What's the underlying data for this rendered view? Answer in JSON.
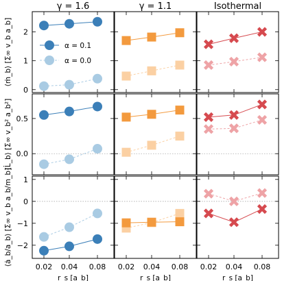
{
  "chart_data": {
    "type": "line",
    "layout": "3x3 grid, shared x and y per row",
    "column_titles": [
      "γ = 1.6",
      "γ = 1.1",
      "Isothermal"
    ],
    "x": [
      0.02,
      0.04,
      0.08
    ],
    "xlabel": "r_s [a_b]",
    "xtick_labels": [
      "0.02",
      "0.04",
      "0.08"
    ],
    "legend": {
      "placement": "upper-left of first panel",
      "entries": [
        {
          "label": "α = 0.1",
          "style": "solid, dark"
        },
        {
          "label": "α = 0.0",
          "style": "dashed, light"
        }
      ]
    },
    "rows": [
      {
        "ylabel": "⟨ṁ_b⟩ [Σ∞ v_b a_b]",
        "ylim": [
          -0.1,
          2.7
        ],
        "yticks": [
          0,
          1,
          2
        ],
        "ytick_labels": [
          "0",
          "1",
          "2"
        ],
        "zero_line": false,
        "panels": [
          {
            "series": [
              {
                "legend": "α = 0.1",
                "values": [
                  2.22,
                  2.28,
                  2.35
                ]
              },
              {
                "legend": "α = 0.0",
                "values": [
                  0.12,
                  0.17,
                  0.38
                ]
              }
            ]
          },
          {
            "series": [
              {
                "legend": "α = 0.1",
                "values": [
                  1.7,
                  1.82,
                  1.97
                ]
              },
              {
                "legend": "α = 0.0",
                "values": [
                  0.47,
                  0.65,
                  0.85
                ]
              }
            ]
          },
          {
            "series": [
              {
                "legend": "α = 0.1",
                "values": [
                  1.57,
                  1.78,
                  2.0
                ]
              },
              {
                "legend": "α = 0.0",
                "values": [
                  0.85,
                  0.97,
                  1.12
                ]
              }
            ]
          }
        ]
      },
      {
        "ylabel": "⟨L̇_b⟩ [Σ∞ v_b² a_b²]",
        "ylim": [
          -0.3,
          0.85
        ],
        "yticks": [
          0,
          0.5
        ],
        "ytick_labels": [
          "0.0",
          "0.5"
        ],
        "zero_line": true,
        "panels": [
          {
            "series": [
              {
                "legend": "α = 0.1",
                "values": [
                  0.55,
                  0.6,
                  0.67
                ]
              },
              {
                "legend": "α = 0.0",
                "values": [
                  -0.15,
                  -0.08,
                  0.07
                ]
              }
            ]
          },
          {
            "series": [
              {
                "legend": "α = 0.1",
                "values": [
                  0.52,
                  0.56,
                  0.62
                ]
              },
              {
                "legend": "α = 0.0",
                "values": [
                  0.02,
                  0.12,
                  0.25
                ]
              }
            ]
          },
          {
            "series": [
              {
                "legend": "α = 0.1",
                "values": [
                  0.52,
                  0.55,
                  0.7
                ]
              },
              {
                "legend": "α = 0.0",
                "values": [
                  0.35,
                  0.36,
                  0.48
                ]
              }
            ]
          }
        ]
      },
      {
        "ylabel": "⟨ȧ_b/a_b⟩ [Σ∞ v_b a_b/m_b]",
        "ylim": [
          -2.6,
          1.15
        ],
        "yticks": [
          -2,
          -1,
          0,
          1
        ],
        "ytick_labels": [
          "−2",
          "−1",
          "0",
          "1"
        ],
        "zero_line": true,
        "panels": [
          {
            "series": [
              {
                "legend": "α = 0.1",
                "values": [
                  -2.25,
                  -2.05,
                  -1.72
                ]
              },
              {
                "legend": "α = 0.0",
                "values": [
                  -1.62,
                  -1.18,
                  -0.55
                ]
              }
            ]
          },
          {
            "series": [
              {
                "legend": "α = 0.1",
                "values": [
                  -0.98,
                  -0.95,
                  -0.93
                ]
              },
              {
                "legend": "α = 0.0",
                "values": [
                  -1.22,
                  -0.97,
                  -0.55
                ]
              }
            ]
          },
          {
            "series": [
              {
                "legend": "α = 0.1",
                "values": [
                  -0.55,
                  -0.95,
                  -0.35
                ]
              },
              {
                "legend": "α = 0.0",
                "values": [
                  0.35,
                  0.0,
                  0.38
                ]
              }
            ]
          }
        ]
      }
    ],
    "column_styles": [
      {
        "marker": "circle",
        "color_dark": "#3b7fb8",
        "color_light": "#a9cbe3"
      },
      {
        "marker": "square",
        "color_dark": "#f39a3e",
        "color_light": "#fbd0a3"
      },
      {
        "marker": "x",
        "color_dark": "#d64a4f",
        "color_light": "#eea3a6"
      }
    ],
    "zero_line_style": "dotted gray",
    "grid": false
  }
}
